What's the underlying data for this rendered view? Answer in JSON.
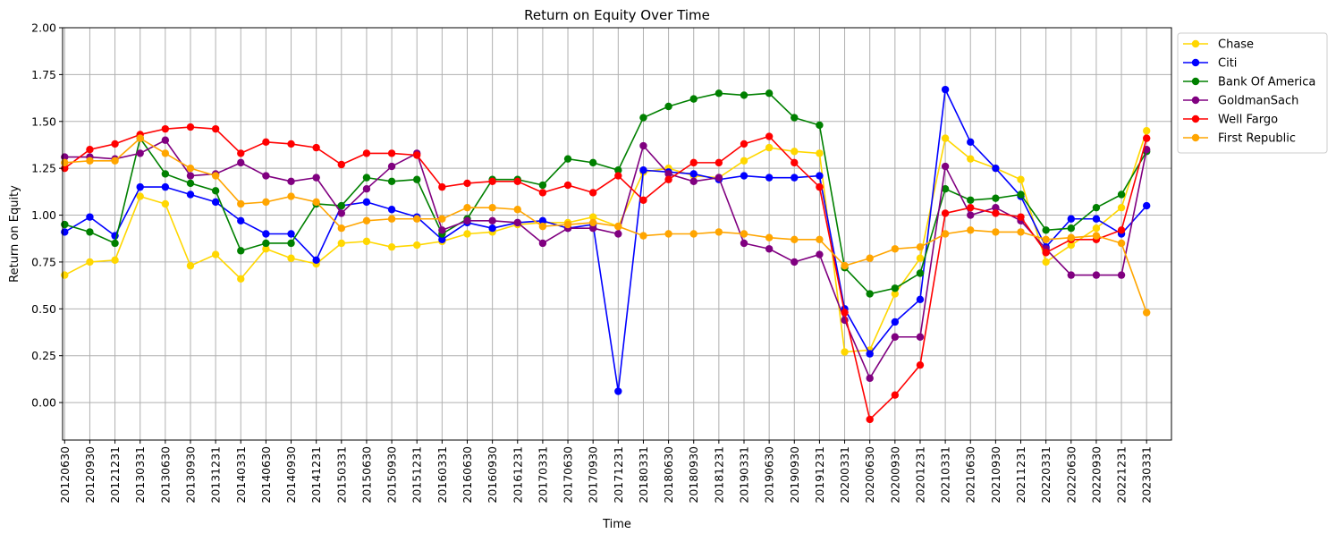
{
  "chart_data": {
    "type": "line",
    "title": "Return on Equity Over Time",
    "xlabel": "Time",
    "ylabel": "Return on Equity",
    "ylim": [
      -0.2,
      2.0
    ],
    "yticks": [
      0.0,
      0.25,
      0.5,
      0.75,
      1.0,
      1.25,
      1.5,
      1.75,
      2.0
    ],
    "ytick_labels": [
      "0.00",
      "0.25",
      "0.50",
      "0.75",
      "1.00",
      "1.25",
      "1.50",
      "1.75",
      "2.00"
    ],
    "grid": true,
    "legend_position": "outside-top-right",
    "x": [
      "20120630",
      "20120930",
      "20121231",
      "20130331",
      "20130630",
      "20130930",
      "20131231",
      "20140331",
      "20140630",
      "20140930",
      "20141231",
      "20150331",
      "20150630",
      "20150930",
      "20151231",
      "20160331",
      "20160630",
      "20160930",
      "20161231",
      "20170331",
      "20170630",
      "20170930",
      "20171231",
      "20180331",
      "20180630",
      "20180930",
      "20181231",
      "20190331",
      "20190630",
      "20190930",
      "20191231",
      "20200331",
      "20200630",
      "20200930",
      "20201231",
      "20210331",
      "20210630",
      "20210930",
      "20211231",
      "20220331",
      "20220630",
      "20220930",
      "20221231",
      "20230331"
    ],
    "series": [
      {
        "name": "Chase",
        "color": "#FFD700",
        "values": [
          0.68,
          0.75,
          0.76,
          1.1,
          1.06,
          0.73,
          0.79,
          0.66,
          0.82,
          0.77,
          0.74,
          0.85,
          0.86,
          0.83,
          0.84,
          0.86,
          0.9,
          0.91,
          0.95,
          0.96,
          0.96,
          0.99,
          0.94,
          1.23,
          1.25,
          1.21,
          1.2,
          1.29,
          1.36,
          1.34,
          1.33,
          0.27,
          0.28,
          0.58,
          0.77,
          1.41,
          1.3,
          1.25,
          1.19,
          0.75,
          0.84,
          0.93,
          1.04,
          1.45
        ]
      },
      {
        "name": "Citi",
        "color": "#0000FF",
        "values": [
          0.91,
          0.99,
          0.89,
          1.15,
          1.15,
          1.11,
          1.07,
          0.97,
          0.9,
          0.9,
          0.76,
          1.05,
          1.07,
          1.03,
          0.99,
          0.87,
          0.96,
          0.93,
          0.96,
          0.97,
          0.93,
          0.95,
          0.06,
          1.24,
          1.23,
          1.22,
          1.19,
          1.21,
          1.2,
          1.2,
          1.21,
          0.5,
          0.26,
          0.43,
          0.55,
          1.67,
          1.39,
          1.25,
          1.1,
          0.83,
          0.98,
          0.98,
          0.9,
          1.05
        ]
      },
      {
        "name": "Bank Of America",
        "color": "#008000",
        "values": [
          0.95,
          0.91,
          0.85,
          1.41,
          1.22,
          1.17,
          1.13,
          0.81,
          0.85,
          0.85,
          1.06,
          1.05,
          1.2,
          1.18,
          1.19,
          0.9,
          0.98,
          1.19,
          1.19,
          1.16,
          1.3,
          1.28,
          1.24,
          1.52,
          1.58,
          1.62,
          1.65,
          1.64,
          1.65,
          1.52,
          1.48,
          0.72,
          0.58,
          0.61,
          0.69,
          1.14,
          1.08,
          1.09,
          1.11,
          0.92,
          0.93,
          1.04,
          1.11,
          1.34
        ]
      },
      {
        "name": "GoldmanSach",
        "color": "#800080",
        "values": [
          1.31,
          1.31,
          1.3,
          1.33,
          1.4,
          1.21,
          1.22,
          1.28,
          1.21,
          1.18,
          1.2,
          1.01,
          1.14,
          1.26,
          1.33,
          0.92,
          0.97,
          0.97,
          0.96,
          0.85,
          0.93,
          0.93,
          0.9,
          1.37,
          1.22,
          1.18,
          1.2,
          0.85,
          0.82,
          0.75,
          0.79,
          0.44,
          0.13,
          0.35,
          0.35,
          1.26,
          1.0,
          1.04,
          0.97,
          0.82,
          0.68,
          0.68,
          0.68,
          1.35
        ]
      },
      {
        "name": "Well Fargo",
        "color": "#FF0000",
        "values": [
          1.25,
          1.35,
          1.38,
          1.43,
          1.46,
          1.47,
          1.46,
          1.33,
          1.39,
          1.38,
          1.36,
          1.27,
          1.33,
          1.33,
          1.32,
          1.15,
          1.17,
          1.18,
          1.18,
          1.12,
          1.16,
          1.12,
          1.21,
          1.08,
          1.19,
          1.28,
          1.28,
          1.38,
          1.42,
          1.28,
          1.15,
          0.48,
          -0.09,
          0.04,
          0.2,
          1.01,
          1.04,
          1.01,
          0.99,
          0.8,
          0.87,
          0.87,
          0.92,
          1.41
        ]
      },
      {
        "name": "First Republic",
        "color": "#FFA500",
        "values": [
          1.28,
          1.29,
          1.29,
          1.41,
          1.33,
          1.25,
          1.21,
          1.06,
          1.07,
          1.1,
          1.07,
          0.93,
          0.97,
          0.98,
          0.98,
          0.98,
          1.04,
          1.04,
          1.03,
          0.94,
          0.95,
          0.96,
          0.94,
          0.89,
          0.9,
          0.9,
          0.91,
          0.9,
          0.88,
          0.87,
          0.87,
          0.73,
          0.77,
          0.82,
          0.83,
          0.9,
          0.92,
          0.91,
          0.91,
          0.87,
          0.88,
          0.89,
          0.85,
          0.48
        ]
      }
    ]
  }
}
